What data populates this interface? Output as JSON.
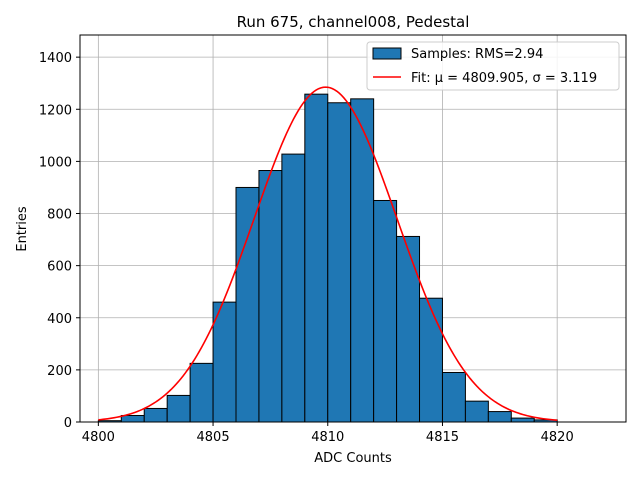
{
  "chart_data": {
    "type": "bar",
    "title": "Run 675, channel008, Pedestal",
    "xlabel": "ADC Counts",
    "ylabel": "Entries",
    "xlim": [
      4799.2,
      4823
    ],
    "ylim": [
      0,
      1485
    ],
    "xticks": [
      4800,
      4805,
      4810,
      4815,
      4820
    ],
    "yticks": [
      0,
      200,
      400,
      600,
      800,
      1000,
      1200,
      1400
    ],
    "grid": true,
    "legend_position": "top-right",
    "bin_width": 1,
    "bins": [
      {
        "x": 4800,
        "count": 5
      },
      {
        "x": 4801,
        "count": 25
      },
      {
        "x": 4802,
        "count": 52
      },
      {
        "x": 4803,
        "count": 102
      },
      {
        "x": 4804,
        "count": 225
      },
      {
        "x": 4805,
        "count": 460
      },
      {
        "x": 4806,
        "count": 900
      },
      {
        "x": 4807,
        "count": 965
      },
      {
        "x": 4808,
        "count": 1028
      },
      {
        "x": 4809,
        "count": 1258
      },
      {
        "x": 4810,
        "count": 1225
      },
      {
        "x": 4811,
        "count": 1240
      },
      {
        "x": 4812,
        "count": 850
      },
      {
        "x": 4813,
        "count": 712
      },
      {
        "x": 4814,
        "count": 475
      },
      {
        "x": 4815,
        "count": 190
      },
      {
        "x": 4816,
        "count": 80
      },
      {
        "x": 4817,
        "count": 40
      },
      {
        "x": 4818,
        "count": 15
      },
      {
        "x": 4819,
        "count": 8
      }
    ],
    "fit": {
      "type": "gaussian",
      "mu": 4809.905,
      "sigma": 3.119,
      "amplitude": 1285,
      "x_range": [
        4800,
        4820
      ]
    },
    "series": [
      {
        "name": "Samples: RMS=2.94",
        "kind": "histogram",
        "color": "#1f77b4",
        "edgecolor": "#000000"
      },
      {
        "name": "Fit: μ = 4809.905, σ = 3.119",
        "kind": "line",
        "color": "#ff0000"
      }
    ]
  }
}
